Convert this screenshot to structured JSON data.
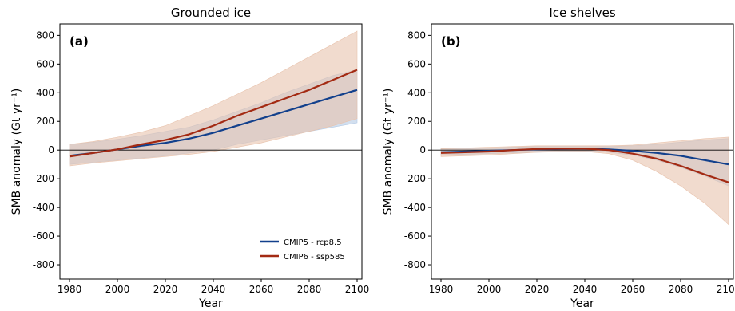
{
  "chart_data": [
    {
      "type": "line",
      "title": "Grounded ice",
      "panel_label": "(a)",
      "xlabel": "Year",
      "ylabel": "SMB anomaly (Gt yr⁻¹)",
      "xlim": [
        1976,
        2102
      ],
      "ylim": [
        -900,
        880
      ],
      "xticks": [
        1980,
        2000,
        2020,
        2040,
        2060,
        2080,
        2100
      ],
      "yticks": [
        -800,
        -600,
        -400,
        -200,
        0,
        200,
        400,
        600,
        800
      ],
      "zero_line": true,
      "legend_position": "lower-right",
      "series": [
        {
          "name": "CMIP5 - rcp8.5",
          "color": "#12408c",
          "band_color": "#b4c9e4",
          "x": [
            1980,
            1990,
            2000,
            2010,
            2020,
            2030,
            2040,
            2050,
            2060,
            2070,
            2080,
            2090,
            2100
          ],
          "y": [
            -40,
            -20,
            5,
            30,
            50,
            80,
            120,
            170,
            220,
            270,
            320,
            370,
            420
          ],
          "lower": [
            -100,
            -85,
            -70,
            -55,
            -40,
            -20,
            0,
            40,
            70,
            100,
            130,
            160,
            190
          ],
          "upper": [
            40,
            55,
            75,
            100,
            130,
            160,
            210,
            270,
            330,
            400,
            460,
            520,
            560
          ]
        },
        {
          "name": "CMIP6 - ssp585",
          "color": "#a32a13",
          "band_color": "#e8c3ad",
          "x": [
            1980,
            1990,
            2000,
            2010,
            2020,
            2030,
            2040,
            2050,
            2060,
            2070,
            2080,
            2090,
            2100
          ],
          "y": [
            -45,
            -20,
            5,
            40,
            70,
            110,
            170,
            240,
            300,
            360,
            420,
            490,
            560
          ],
          "lower": [
            -110,
            -90,
            -75,
            -60,
            -45,
            -30,
            -10,
            20,
            50,
            90,
            130,
            170,
            220
          ],
          "upper": [
            40,
            60,
            90,
            125,
            170,
            240,
            310,
            390,
            470,
            560,
            650,
            740,
            830
          ]
        }
      ]
    },
    {
      "type": "line",
      "title": "Ice shelves",
      "panel_label": "(b)",
      "xlabel": "Year",
      "ylabel": "SMB anomaly (Gt yr⁻¹)",
      "xlim": [
        1976,
        2102
      ],
      "ylim": [
        -900,
        880
      ],
      "xticks": [
        1980,
        2000,
        2020,
        2040,
        2060,
        2080,
        2100
      ],
      "yticks": [
        -800,
        -600,
        -400,
        -200,
        0,
        200,
        400,
        600,
        800
      ],
      "zero_line": true,
      "series": [
        {
          "name": "CMIP5 - rcp8.5",
          "color": "#12408c",
          "band_color": "#b4c9e4",
          "x": [
            1980,
            1990,
            2000,
            2010,
            2020,
            2030,
            2040,
            2050,
            2060,
            2070,
            2080,
            2090,
            2100
          ],
          "y": [
            -15,
            -10,
            -5,
            0,
            5,
            8,
            10,
            5,
            -5,
            -20,
            -40,
            -70,
            -100
          ],
          "lower": [
            -35,
            -30,
            -25,
            -20,
            -15,
            -10,
            -8,
            -15,
            -35,
            -70,
            -120,
            -180,
            -250
          ],
          "upper": [
            10,
            10,
            15,
            20,
            25,
            25,
            25,
            25,
            30,
            40,
            55,
            70,
            80
          ]
        },
        {
          "name": "CMIP6 - ssp585",
          "color": "#a32a13",
          "band_color": "#e8c3ad",
          "x": [
            1980,
            1990,
            2000,
            2010,
            2020,
            2030,
            2040,
            2050,
            2060,
            2070,
            2080,
            2090,
            2100
          ],
          "y": [
            -20,
            -15,
            -10,
            0,
            8,
            10,
            10,
            0,
            -25,
            -60,
            -110,
            -170,
            -225
          ],
          "lower": [
            -45,
            -40,
            -35,
            -25,
            -15,
            -12,
            -10,
            -25,
            -70,
            -150,
            -250,
            -370,
            -520
          ],
          "upper": [
            10,
            15,
            20,
            25,
            30,
            30,
            30,
            30,
            35,
            50,
            65,
            80,
            90
          ]
        }
      ]
    }
  ]
}
